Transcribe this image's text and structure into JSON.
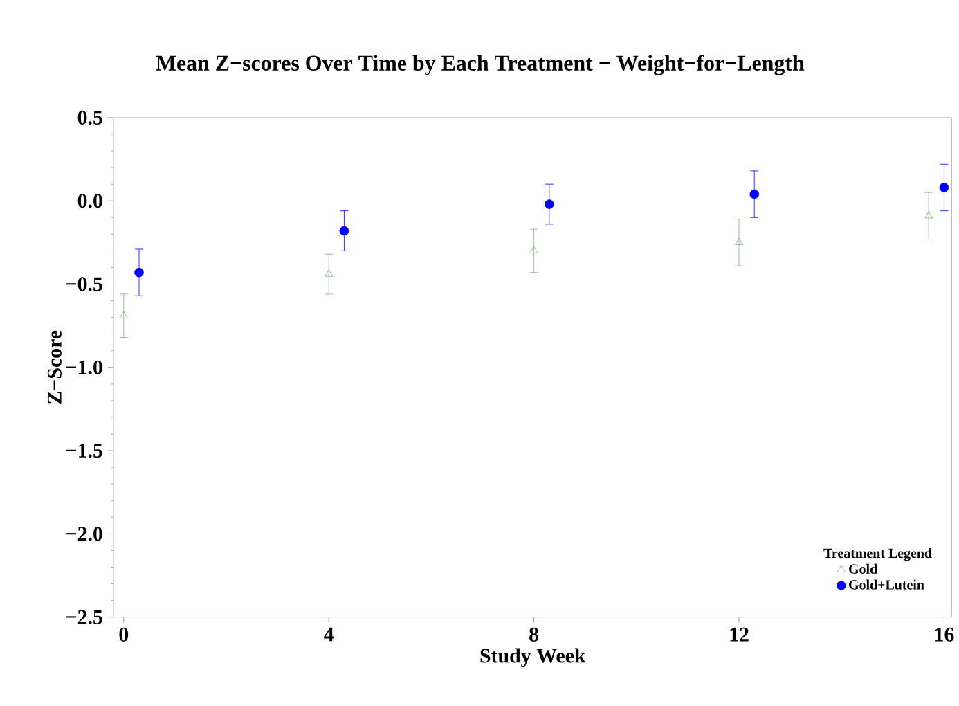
{
  "chart_data": {
    "type": "scatter",
    "title": "Mean Z−scores Over Time by Each Treatment − Weight−for−Length",
    "xlabel": "Study Week",
    "ylabel": "Z−Score",
    "legend_title": "Treatment Legend",
    "legend": "bottom right",
    "grid": false,
    "xlim": [
      -0.2,
      16.15
    ],
    "xticks": [
      0,
      4,
      8,
      12,
      16
    ],
    "ylim": [
      -2.5,
      0.5
    ],
    "yticks": [
      {
        "value": 0.5,
        "label": "0.5"
      },
      {
        "value": 0.0,
        "label": "0.0"
      },
      {
        "value": -0.5,
        "label": "−0.5"
      },
      {
        "value": -1.0,
        "label": "−1.0"
      },
      {
        "value": -1.5,
        "label": "−1.5"
      },
      {
        "value": -2.0,
        "label": "−2.0"
      },
      {
        "value": -2.5,
        "label": "−2.5"
      }
    ],
    "series": [
      {
        "name": "Gold",
        "color": "#7fb07f",
        "marker": "triangle",
        "x": [
          0,
          4,
          8,
          12,
          15.7
        ],
        "values": [
          -0.69,
          -0.44,
          -0.3,
          -0.25,
          -0.09
        ],
        "errors": [
          0.13,
          0.12,
          0.13,
          0.14,
          0.14
        ]
      },
      {
        "name": "Gold+Lutein",
        "color": "#0000ff",
        "marker": "circle",
        "x": [
          0.3,
          4.3,
          8.3,
          12.3,
          16
        ],
        "values": [
          -0.43,
          -0.18,
          -0.02,
          0.04,
          0.08
        ],
        "errors": [
          0.14,
          0.12,
          0.12,
          0.14,
          0.14
        ]
      }
    ]
  }
}
